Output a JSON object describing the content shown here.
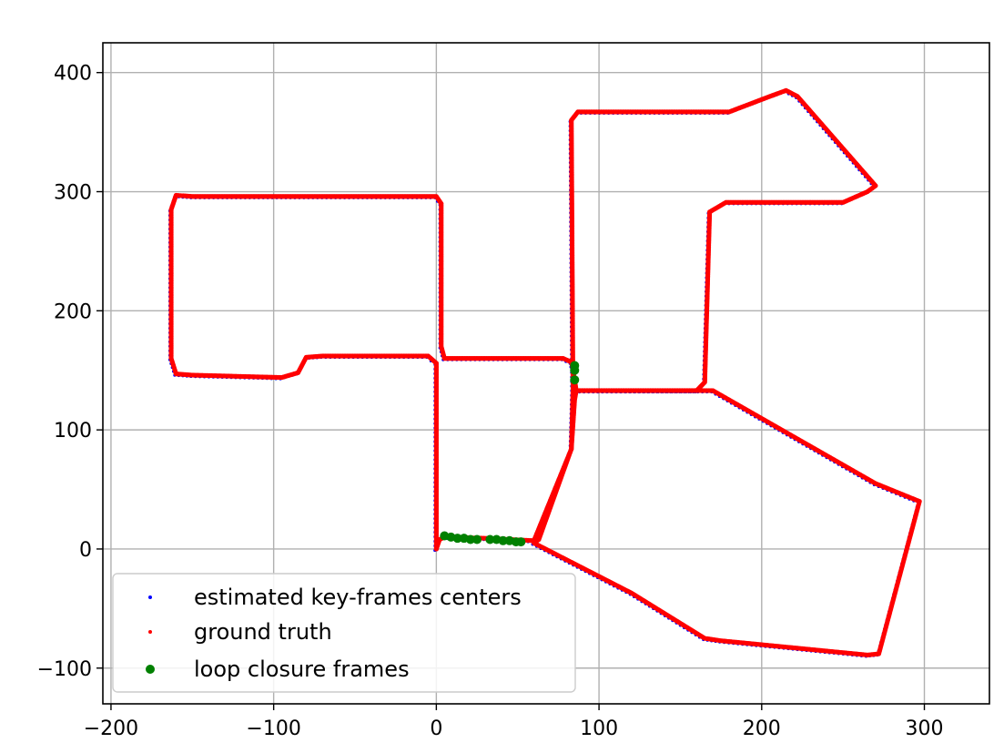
{
  "chart_data": {
    "type": "scatter",
    "title": "",
    "xlabel": "",
    "ylabel": "",
    "xlim": [
      -205,
      340
    ],
    "ylim": [
      -130,
      425
    ],
    "xticks": [
      -200,
      -100,
      0,
      100,
      200,
      300
    ],
    "yticks": [
      -100,
      0,
      100,
      200,
      300,
      400
    ],
    "xtick_labels": [
      "−200",
      "−100",
      "0",
      "100",
      "200",
      "300"
    ],
    "ytick_labels": [
      "−100",
      "0",
      "100",
      "200",
      "300",
      "400"
    ],
    "grid": true,
    "legend_position": "lower-left",
    "series": [
      {
        "name": "estimated key-frames centers",
        "color": "#0000ff",
        "marker": "small-dot",
        "offset": [
          -1.5,
          -1.5
        ],
        "path": [
          [
            0,
            0
          ],
          [
            2,
            8
          ],
          [
            5,
            10
          ],
          [
            30,
            9
          ],
          [
            60,
            7
          ],
          [
            83,
            84
          ],
          [
            85,
            125
          ],
          [
            86,
            133
          ],
          [
            170,
            133
          ],
          [
            270,
            55
          ],
          [
            297,
            40
          ],
          [
            272,
            -88
          ],
          [
            265,
            -89
          ],
          [
            175,
            -77
          ],
          [
            165,
            -75
          ],
          [
            120,
            -37
          ],
          [
            60,
            5
          ],
          [
            63,
            8
          ],
          [
            83,
            84
          ],
          [
            84,
            134
          ],
          [
            83,
            360
          ],
          [
            87,
            367
          ],
          [
            180,
            367
          ],
          [
            205,
            380
          ],
          [
            215,
            385
          ],
          [
            222,
            380
          ],
          [
            270,
            305
          ],
          [
            265,
            300
          ],
          [
            250,
            291
          ],
          [
            178,
            291
          ],
          [
            168,
            283
          ],
          [
            165,
            140
          ],
          [
            160,
            133
          ],
          [
            86,
            133
          ],
          [
            84,
            151
          ],
          [
            83,
            157
          ],
          [
            78,
            160
          ],
          [
            5,
            160
          ],
          [
            3,
            170
          ],
          [
            3,
            290
          ],
          [
            0,
            296
          ],
          [
            -150,
            296
          ],
          [
            -160,
            297
          ],
          [
            -163,
            285
          ],
          [
            -163,
            160
          ],
          [
            -160,
            147
          ],
          [
            -150,
            146
          ],
          [
            -95,
            144
          ],
          [
            -85,
            148
          ],
          [
            -80,
            161
          ],
          [
            -70,
            162
          ],
          [
            -5,
            162
          ],
          [
            0,
            156
          ],
          [
            0,
            0
          ]
        ]
      },
      {
        "name": "ground truth",
        "color": "#ff0000",
        "marker": "small-dot",
        "offset": [
          0,
          0
        ],
        "path": [
          [
            0,
            0
          ],
          [
            2,
            8
          ],
          [
            5,
            10
          ],
          [
            30,
            9
          ],
          [
            60,
            7
          ],
          [
            83,
            84
          ],
          [
            85,
            125
          ],
          [
            86,
            133
          ],
          [
            170,
            133
          ],
          [
            270,
            55
          ],
          [
            297,
            40
          ],
          [
            272,
            -88
          ],
          [
            265,
            -89
          ],
          [
            175,
            -77
          ],
          [
            165,
            -75
          ],
          [
            120,
            -37
          ],
          [
            60,
            5
          ],
          [
            63,
            8
          ],
          [
            83,
            84
          ],
          [
            84,
            134
          ],
          [
            83,
            360
          ],
          [
            87,
            367
          ],
          [
            180,
            367
          ],
          [
            205,
            380
          ],
          [
            215,
            385
          ],
          [
            222,
            380
          ],
          [
            270,
            305
          ],
          [
            265,
            300
          ],
          [
            250,
            291
          ],
          [
            178,
            291
          ],
          [
            168,
            283
          ],
          [
            165,
            140
          ],
          [
            160,
            133
          ],
          [
            86,
            133
          ],
          [
            84,
            151
          ],
          [
            83,
            157
          ],
          [
            78,
            160
          ],
          [
            5,
            160
          ],
          [
            3,
            170
          ],
          [
            3,
            290
          ],
          [
            0,
            296
          ],
          [
            -150,
            296
          ],
          [
            -160,
            297
          ],
          [
            -163,
            285
          ],
          [
            -163,
            160
          ],
          [
            -160,
            147
          ],
          [
            -150,
            146
          ],
          [
            -95,
            144
          ],
          [
            -85,
            148
          ],
          [
            -80,
            161
          ],
          [
            -70,
            162
          ],
          [
            -5,
            162
          ],
          [
            0,
            156
          ],
          [
            0,
            0
          ]
        ]
      },
      {
        "name": "loop closure frames",
        "color": "#008000",
        "marker": "dot",
        "points": [
          [
            5,
            11
          ],
          [
            9,
            10
          ],
          [
            13,
            9
          ],
          [
            17,
            9
          ],
          [
            21,
            8
          ],
          [
            25,
            8
          ],
          [
            33,
            8
          ],
          [
            37,
            8
          ],
          [
            41,
            7
          ],
          [
            45,
            7
          ],
          [
            49,
            6
          ],
          [
            52,
            6
          ],
          [
            85,
            154
          ],
          [
            85,
            150
          ],
          [
            85,
            142
          ]
        ]
      }
    ]
  }
}
